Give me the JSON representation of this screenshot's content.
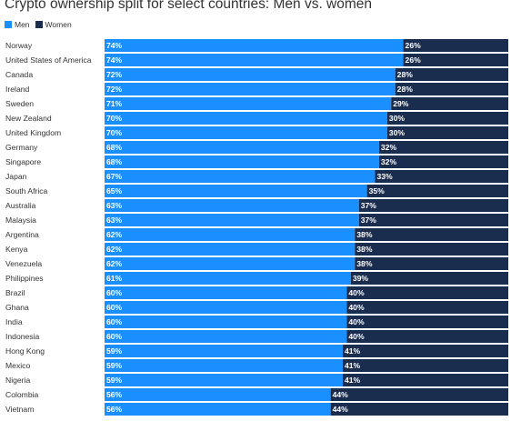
{
  "chart_data": {
    "type": "bar",
    "orientation": "horizontal-stacked-100",
    "title": "Crypto ownership split for select countries: Men vs. women",
    "categories": [
      "Norway",
      "United States of America",
      "Canada",
      "Ireland",
      "Sweden",
      "New Zealand",
      "United Kingdom",
      "Germany",
      "Singapore",
      "Japan",
      "South Africa",
      "Australia",
      "Malaysia",
      "Argentina",
      "Kenya",
      "Venezuela",
      "Philippines",
      "Brazil",
      "Ghana",
      "India",
      "Indonesia",
      "Hong Kong",
      "Mexico",
      "Nigeria",
      "Colombia",
      "Vietnam"
    ],
    "series": [
      {
        "name": "Men",
        "color": "#1a8fff",
        "values": [
          74,
          74,
          72,
          72,
          71,
          70,
          70,
          68,
          68,
          67,
          65,
          63,
          63,
          62,
          62,
          62,
          61,
          60,
          60,
          60,
          60,
          59,
          59,
          59,
          56,
          56
        ]
      },
      {
        "name": "Women",
        "color": "#1b2d4f",
        "values": [
          26,
          26,
          28,
          28,
          29,
          30,
          30,
          32,
          32,
          33,
          35,
          37,
          37,
          38,
          38,
          38,
          39,
          40,
          40,
          40,
          40,
          41,
          41,
          41,
          44,
          44
        ]
      }
    ],
    "value_suffix": "%",
    "xlim": [
      0,
      100
    ],
    "legend_position": "top-left",
    "grid": false
  }
}
